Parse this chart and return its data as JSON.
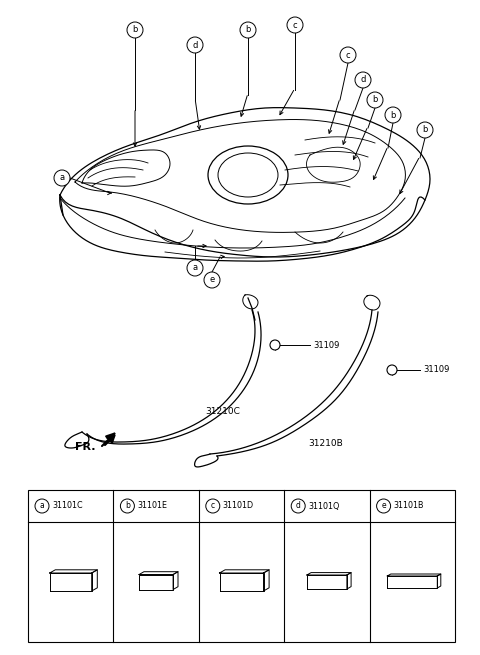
{
  "bg_color": "#ffffff",
  "line_color": "#000000",
  "parts": [
    {
      "label": "a",
      "code": "31101C"
    },
    {
      "label": "b",
      "code": "31101E"
    },
    {
      "label": "c",
      "code": "31101D"
    },
    {
      "label": "d",
      "code": "31101Q"
    },
    {
      "label": "e",
      "code": "31101B"
    }
  ]
}
